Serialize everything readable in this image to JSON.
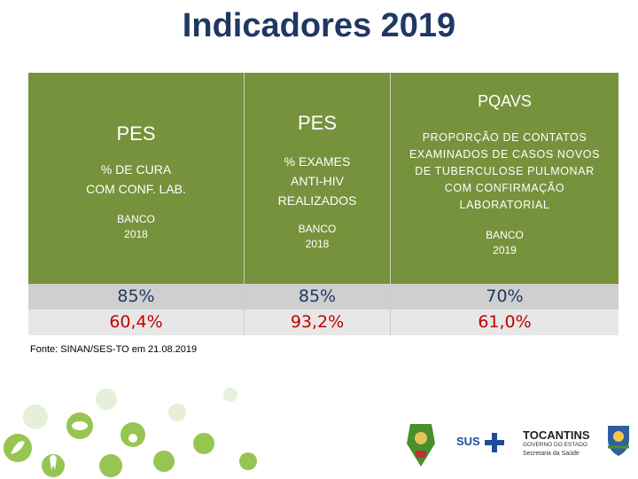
{
  "title": "Indicadores 2019",
  "columns": [
    {
      "header": "PES",
      "description_lines": [
        "% DE CURA",
        "COM CONF. LAB."
      ],
      "source_lines": [
        "BANCO",
        "2018"
      ],
      "value_1": "85%",
      "value_2": "60,4%"
    },
    {
      "header": "PES",
      "description_lines": [
        "% EXAMES",
        "ANTI-HIV",
        "REALIZADOS"
      ],
      "source_lines": [
        "BANCO",
        "2018"
      ],
      "value_1": "85%",
      "value_2": "93,2%"
    },
    {
      "header": "PQAVS",
      "description_lines": [
        "PROPORÇÃO DE CONTATOS",
        "EXAMINADOS DE CASOS NOVOS",
        "DE TUBERCULOSE PULMONAR",
        "COM CONFIRMAÇÃO",
        "LABORATORIAL"
      ],
      "source_lines": [
        "BANCO",
        "2019"
      ],
      "value_1": "70%",
      "value_2": "61,0%"
    }
  ],
  "source_note": "Fonte: SINAN/SES-TO em 21.08.2019",
  "logos": {
    "sus": "SUS",
    "state_name": "TOCANTINS",
    "state_sub1": "GOVERNO DO ESTADO",
    "state_sub2": "Secretaria da Saúde"
  },
  "colors": {
    "header_bg": "#76923c",
    "title": "#1f3864",
    "target_value": "#1f3864",
    "result_value": "#c00000"
  }
}
